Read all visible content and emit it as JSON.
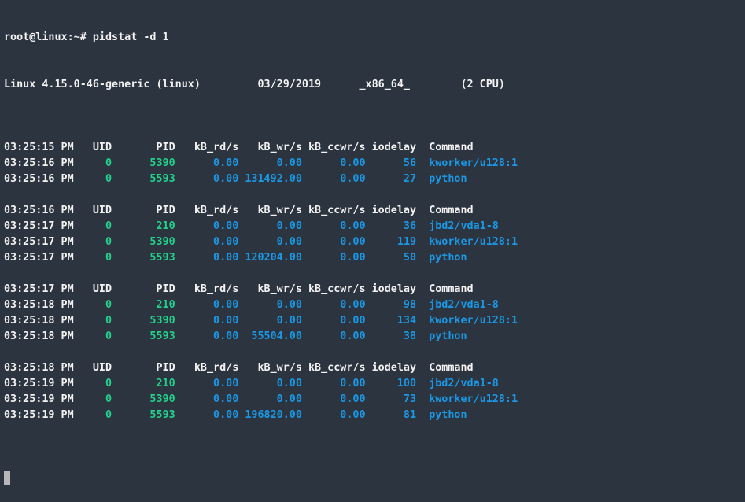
{
  "terminal": {
    "prompt": "root@linux:~# pidstat -d 1",
    "sysinfo": {
      "kernel": "Linux 4.15.0-46-generic (linux)",
      "date": "03/29/2019",
      "arch": "_x86_64_",
      "cpus": "(2 CPU)"
    },
    "colors": {
      "background": "#2c3440",
      "text": "#f2f2f2",
      "green": "#23d18b",
      "blue": "#1b97e3"
    },
    "blocks": [
      {
        "header_time": "03:25:15 PM",
        "rows": [
          [
            "03:25:16 PM",
            "0",
            "5390",
            "0.00",
            "0.00",
            "0.00",
            "56",
            "kworker/u128:1"
          ],
          [
            "03:25:16 PM",
            "0",
            "5593",
            "0.00",
            "131492.00",
            "0.00",
            "27",
            "python"
          ]
        ]
      },
      {
        "header_time": "03:25:16 PM",
        "rows": [
          [
            "03:25:17 PM",
            "0",
            "210",
            "0.00",
            "0.00",
            "0.00",
            "36",
            "jbd2/vda1-8"
          ],
          [
            "03:25:17 PM",
            "0",
            "5390",
            "0.00",
            "0.00",
            "0.00",
            "119",
            "kworker/u128:1"
          ],
          [
            "03:25:17 PM",
            "0",
            "5593",
            "0.00",
            "120204.00",
            "0.00",
            "50",
            "python"
          ]
        ]
      },
      {
        "header_time": "03:25:17 PM",
        "rows": [
          [
            "03:25:18 PM",
            "0",
            "210",
            "0.00",
            "0.00",
            "0.00",
            "98",
            "jbd2/vda1-8"
          ],
          [
            "03:25:18 PM",
            "0",
            "5390",
            "0.00",
            "0.00",
            "0.00",
            "134",
            "kworker/u128:1"
          ],
          [
            "03:25:18 PM",
            "0",
            "5593",
            "0.00",
            "55504.00",
            "0.00",
            "38",
            "python"
          ]
        ]
      },
      {
        "header_time": "03:25:18 PM",
        "rows": [
          [
            "03:25:19 PM",
            "0",
            "210",
            "0.00",
            "0.00",
            "0.00",
            "100",
            "jbd2/vda1-8"
          ],
          [
            "03:25:19 PM",
            "0",
            "5390",
            "0.00",
            "0.00",
            "0.00",
            "73",
            "kworker/u128:1"
          ],
          [
            "03:25:19 PM",
            "0",
            "5593",
            "0.00",
            "196820.00",
            "0.00",
            "81",
            "python"
          ]
        ]
      }
    ],
    "columns": [
      "UID",
      "PID",
      "kB_rd/s",
      "kB_wr/s",
      "kB_ccwr/s",
      "iodelay",
      "Command"
    ]
  }
}
